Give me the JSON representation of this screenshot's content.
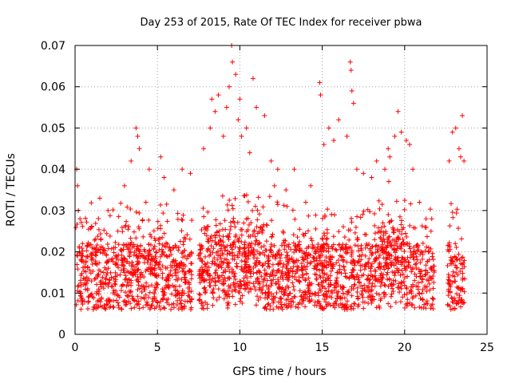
{
  "chart_data": {
    "type": "scatter",
    "title": "Day 253 of 2015, Rate Of TEC Index for receiver pbwa",
    "xlabel": "GPS time / hours",
    "ylabel": "ROTI / TECUs",
    "xlim": [
      0,
      25
    ],
    "ylim": [
      0,
      0.07
    ],
    "xticks": [
      0,
      5,
      10,
      15,
      20,
      25
    ],
    "yticks": [
      0,
      0.01,
      0.02,
      0.03,
      0.04,
      0.05,
      0.06,
      0.07
    ],
    "ytick_labels": [
      "0",
      "0.01",
      "0.02",
      "0.03",
      "0.04",
      "0.05",
      "0.06",
      "0.07"
    ],
    "grid": true,
    "legend": "none",
    "marker": "plus",
    "series_color": "#ff0000",
    "gaps_hours": [
      [
        7.1,
        7.5
      ],
      [
        21.8,
        22.6
      ]
    ],
    "series": [
      {
        "x": [
          0.1,
          0.15,
          0.2,
          0.3,
          0.45,
          1.0,
          1.3,
          1.5,
          2.0,
          2.6,
          3.0,
          3.4,
          3.7,
          3.8,
          3.9,
          4.3,
          4.5,
          5.2,
          5.4,
          6.0,
          6.5,
          7.0,
          7.8,
          8.2,
          8.3,
          8.5,
          8.7,
          9.0,
          9.2,
          9.35,
          9.5,
          9.55,
          9.75,
          9.9,
          10.0,
          10.1,
          10.4,
          10.6,
          10.8,
          11.0,
          11.5,
          11.9,
          12.1,
          12.3,
          12.8,
          13.3,
          14.0,
          14.3,
          14.85,
          14.9,
          15.1,
          15.4,
          15.7,
          16.0,
          16.5,
          16.7,
          16.75,
          16.8,
          16.9,
          17.1,
          17.5,
          18.0,
          18.3,
          18.8,
          19.0,
          19.1,
          19.4,
          19.6,
          19.8,
          20.1,
          20.3,
          20.5,
          20.9,
          21.3,
          21.6,
          22.7,
          22.9,
          23.1,
          23.3,
          23.4,
          23.5,
          23.6
        ],
        "y": [
          0.04,
          0.036,
          0.03,
          0.028,
          0.022,
          0.026,
          0.02,
          0.033,
          0.03,
          0.025,
          0.036,
          0.042,
          0.05,
          0.048,
          0.045,
          0.032,
          0.04,
          0.043,
          0.038,
          0.035,
          0.04,
          0.039,
          0.045,
          0.05,
          0.057,
          0.054,
          0.058,
          0.048,
          0.055,
          0.06,
          0.07,
          0.066,
          0.063,
          0.052,
          0.057,
          0.048,
          0.05,
          0.044,
          0.062,
          0.055,
          0.053,
          0.042,
          0.036,
          0.04,
          0.035,
          0.04,
          0.032,
          0.036,
          0.061,
          0.058,
          0.046,
          0.05,
          0.047,
          0.052,
          0.048,
          0.066,
          0.064,
          0.059,
          0.056,
          0.04,
          0.039,
          0.038,
          0.042,
          0.04,
          0.045,
          0.043,
          0.048,
          0.054,
          0.049,
          0.047,
          0.046,
          0.04,
          0.032,
          0.028,
          0.025,
          0.042,
          0.049,
          0.05,
          0.045,
          0.043,
          0.053,
          0.042
        ]
      }
    ]
  }
}
